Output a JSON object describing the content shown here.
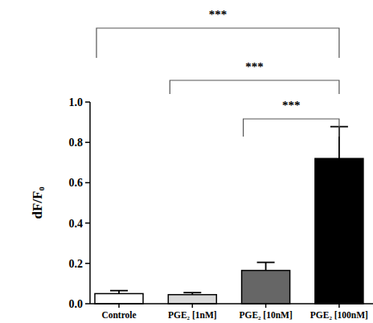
{
  "chart_data": {
    "type": "bar",
    "y_label": "dF/F₀",
    "categories": [
      "Controle",
      "PGE₂ [1nM]",
      "PGE₂ [10nM]",
      "PGE₂ [100nM]"
    ],
    "values": [
      0.05,
      0.045,
      0.165,
      0.72
    ],
    "errors": [
      0.015,
      0.01,
      0.04,
      0.158
    ],
    "colors": [
      "#ffffff",
      "#d9d9d9",
      "#666666",
      "#000000"
    ],
    "ylim": [
      0,
      1
    ],
    "yticks": [
      {
        "value": 0,
        "label": "0.0"
      },
      0.2,
      0.4,
      0.6,
      0.8,
      {
        "value": 1,
        "label": "1.0"
      }
    ],
    "grid": false,
    "annotations": [
      {
        "text": "***",
        "from": 0,
        "to": 3
      },
      {
        "text": "***",
        "from": 1,
        "to": 3
      },
      {
        "text": "***",
        "from": 2,
        "to": 3
      }
    ]
  }
}
